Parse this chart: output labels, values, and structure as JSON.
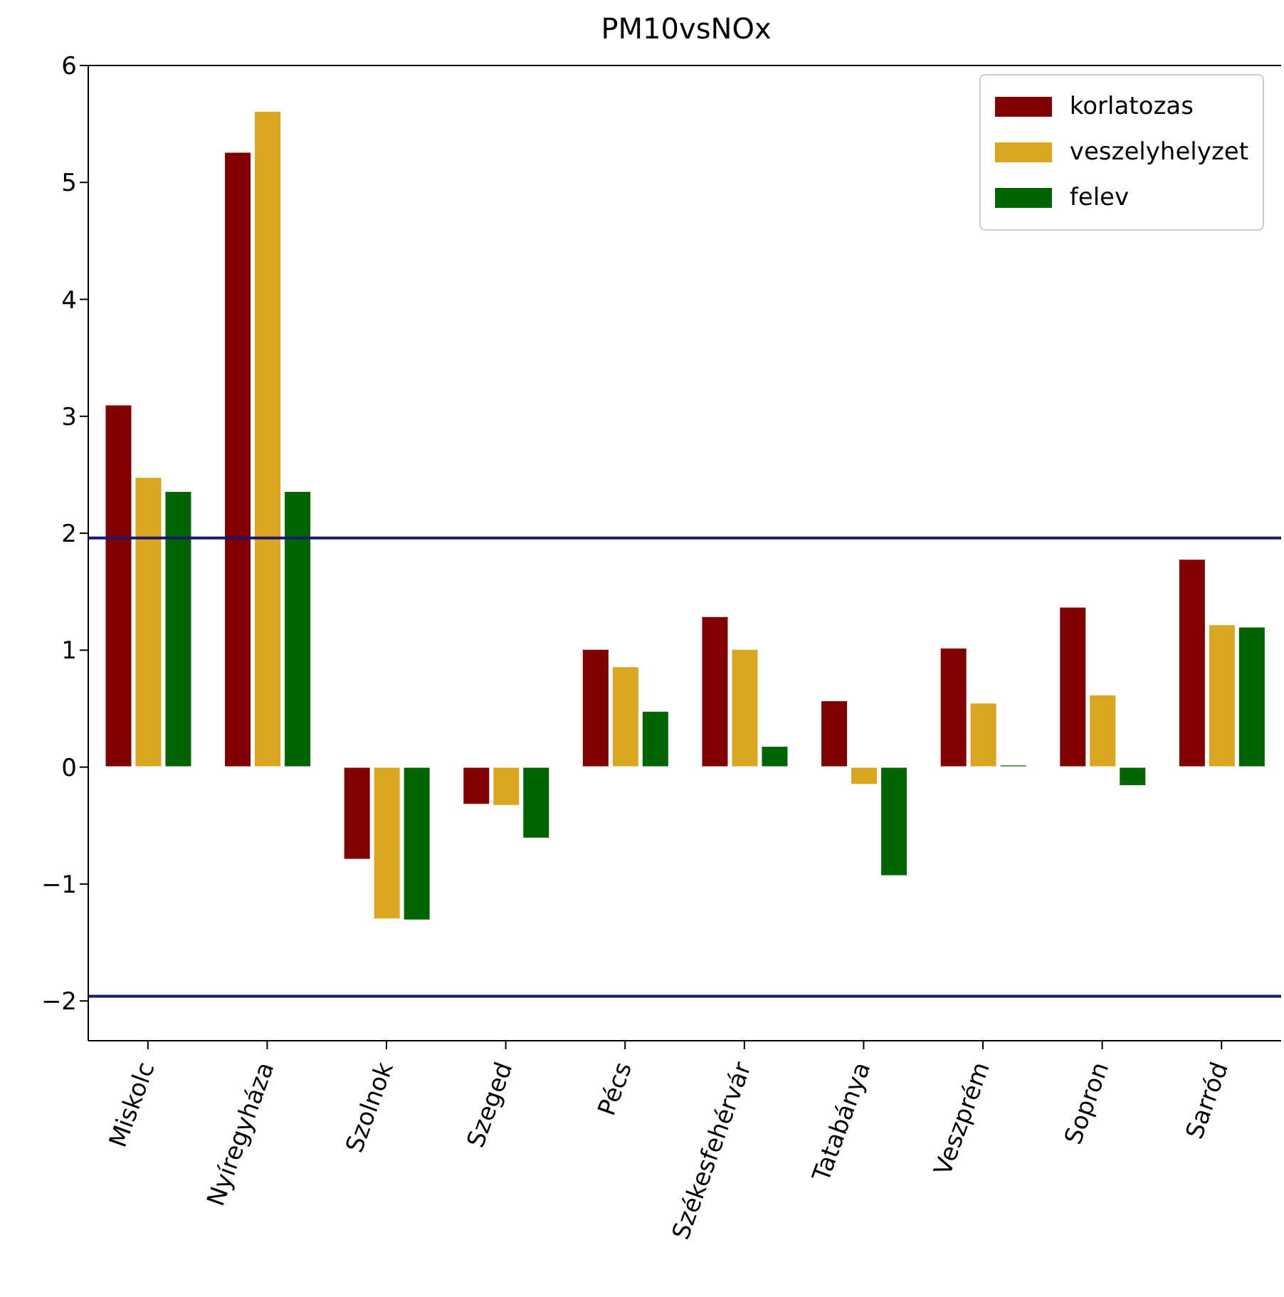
{
  "chart_data": {
    "type": "bar",
    "title": "PM10vsNOx",
    "categories": [
      "Miskolc",
      "Nyíregyháza",
      "Szolnok",
      "Szeged",
      "Pécs",
      "Székesfehérvár",
      "Tatabánya",
      "Veszprém",
      "Sopron",
      "Sarród"
    ],
    "series": [
      {
        "name": "korlatozas",
        "color": "#800000",
        "values": [
          3.1,
          5.26,
          -0.79,
          -0.32,
          1.01,
          1.29,
          0.57,
          1.02,
          1.37,
          1.78
        ]
      },
      {
        "name": "veszelyhelyzet",
        "color": "#daa520",
        "values": [
          2.48,
          5.61,
          -1.3,
          -0.33,
          0.86,
          1.01,
          -0.15,
          0.55,
          0.62,
          1.22
        ]
      },
      {
        "name": "felev",
        "color": "#006400",
        "values": [
          2.36,
          2.36,
          -1.31,
          -0.61,
          0.48,
          0.18,
          -0.93,
          0.02,
          -0.16,
          1.2
        ]
      }
    ],
    "ylim": [
      -2.34,
      6
    ],
    "yticks": [
      -2,
      -1,
      0,
      1,
      2,
      3,
      4,
      5,
      6
    ],
    "ref_lines": [
      {
        "axis": "y",
        "value": 1.96,
        "color": "#191970"
      },
      {
        "axis": "y",
        "value": -1.96,
        "color": "#191970"
      }
    ],
    "legend": "top right",
    "grid": false
  }
}
